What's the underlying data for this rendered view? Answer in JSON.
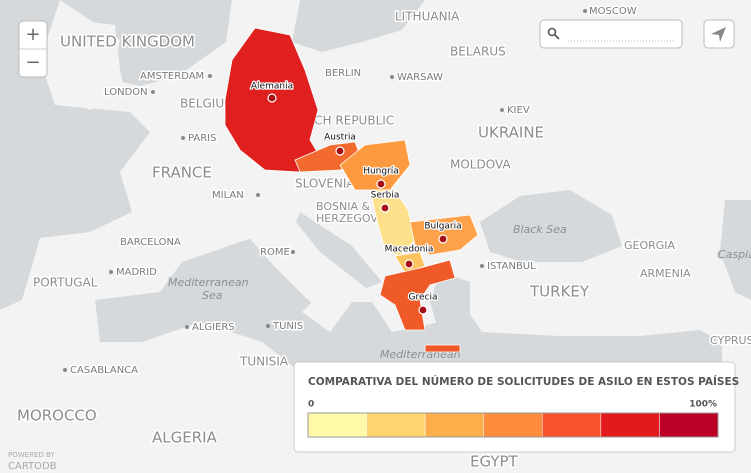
{
  "controls": {
    "zoom_in": "+",
    "zoom_out": "−"
  },
  "map_labels": {
    "countries": [
      "UNITED KINGDOM",
      "LITHUANIA",
      "BELARUS",
      "BELGIUM",
      "CZECH REPUBLIC",
      "UKRAINE",
      "FRANCE",
      "MOLDOVA",
      "SLOVENIA",
      "BOSNIA &",
      "HERZEGOVINA",
      "GEORGIA",
      "PORTUGAL",
      "ARMENIA",
      "TURKEY",
      "TUNISIA",
      "CYPRUS",
      "MOROCCO",
      "ALGERIA",
      "EGYPT"
    ],
    "cities": [
      "MOSCOW",
      "AMSTERDAM",
      "BERLIN",
      "LONDON",
      "WARSAW",
      "KIEV",
      "PARIS",
      "MILAN",
      "ROME",
      "BARCELONA",
      "MADRID",
      "ISTANBUL",
      "ALGIERS",
      "TUNIS",
      "CASABLANCA"
    ],
    "seas": [
      "Black Sea",
      "Caspian Sea",
      "Mediterranean",
      "Sea",
      "Mediterranean"
    ]
  },
  "highlighted_countries": [
    {
      "label": "Alemania",
      "color": "#e0201f"
    },
    {
      "label": "Austria",
      "color": "#f26a2f"
    },
    {
      "label": "Hungría",
      "color": "#fd9a40"
    },
    {
      "label": "Serbia",
      "color": "#fee08b"
    },
    {
      "label": "Bulgaria",
      "color": "#fda14a"
    },
    {
      "label": "Macedonia",
      "color": "#fec45f"
    },
    {
      "label": "Grecia",
      "color": "#f05a28"
    }
  ],
  "legend": {
    "title": "COMPARATIVA DEL NÚMERO DE SOLICITUDES DE ASILO EN ESTOS PAÍSES",
    "min_label": "0",
    "max_label": "100%",
    "colors": [
      "#fffaa8",
      "#fed46e",
      "#fdae4a",
      "#fd8c3c",
      "#f7522b",
      "#e31a1c",
      "#bd0026"
    ]
  },
  "attribution": [
    "POWERED BY",
    "CARTODB"
  ]
}
